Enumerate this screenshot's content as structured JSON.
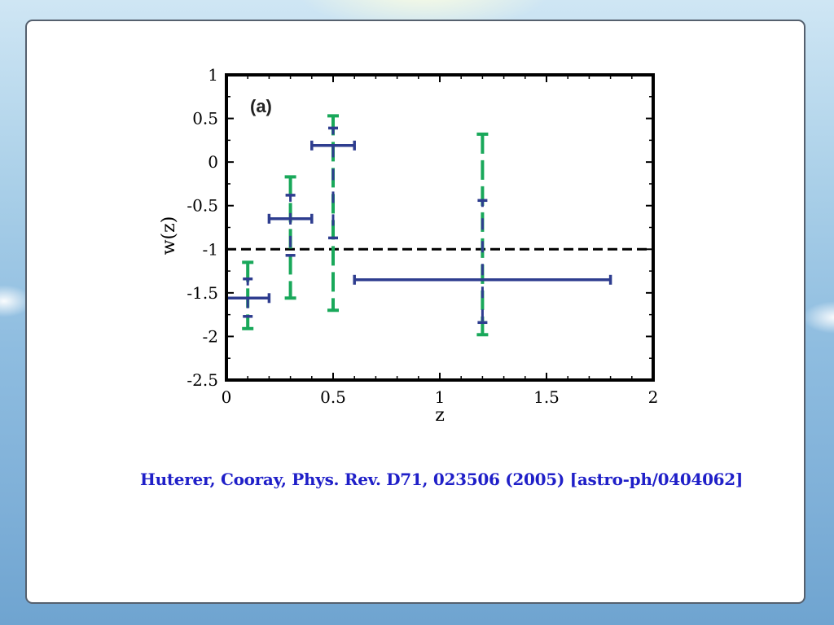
{
  "colors": {
    "series_blue": "#2e3d8f",
    "series_green": "#19a85a",
    "reference_line": "#000000",
    "citation_text": "#1f1fc8"
  },
  "chart_data": {
    "type": "scatter",
    "panel_label": "(a)",
    "xlabel": "z",
    "ylabel": "w(z)",
    "xlim": [
      0,
      2
    ],
    "ylim": [
      -2.5,
      1
    ],
    "x_ticks": [
      0,
      0.5,
      1,
      1.5,
      2
    ],
    "x_tick_labels": [
      "0",
      "0.5",
      "1",
      "1.5",
      "2"
    ],
    "y_ticks": [
      1,
      0.5,
      0,
      -0.5,
      -1,
      -1.5,
      -2,
      -2.5
    ],
    "y_tick_labels": [
      "1",
      "0.5",
      "0",
      "-0.5",
      "-1",
      "-1.5",
      "-2",
      "-2.5"
    ],
    "reference_line": {
      "y": -1,
      "style": "dashed"
    },
    "series": [
      {
        "style": "solid",
        "points": [
          {
            "x": 0.1,
            "y": -1.56,
            "x_low": 0.0,
            "x_high": 0.2,
            "y_low": -1.77,
            "y_high": -1.34
          },
          {
            "x": 0.3,
            "y": -0.65,
            "x_low": 0.2,
            "x_high": 0.4,
            "y_low": -1.07,
            "y_high": -0.38
          },
          {
            "x": 0.5,
            "y": 0.19,
            "x_low": 0.4,
            "x_high": 0.6,
            "y_low": -0.87,
            "y_high": 0.39
          },
          {
            "x": 1.2,
            "y": -1.35,
            "x_low": 0.6,
            "x_high": 1.8,
            "y_low": -1.84,
            "y_high": -0.44
          }
        ]
      },
      {
        "style": "dashed",
        "points": [
          {
            "x": 0.1,
            "y_low": -1.91,
            "y_high": -1.15
          },
          {
            "x": 0.3,
            "y_low": -1.56,
            "y_high": -0.17
          },
          {
            "x": 0.5,
            "y_low": -1.7,
            "y_high": 0.53
          },
          {
            "x": 1.2,
            "y_low": -1.98,
            "y_high": 0.32
          }
        ]
      }
    ]
  },
  "citation": "Huterer, Cooray, Phys. Rev. D71, 023506 (2005) [astro-ph/0404062]"
}
